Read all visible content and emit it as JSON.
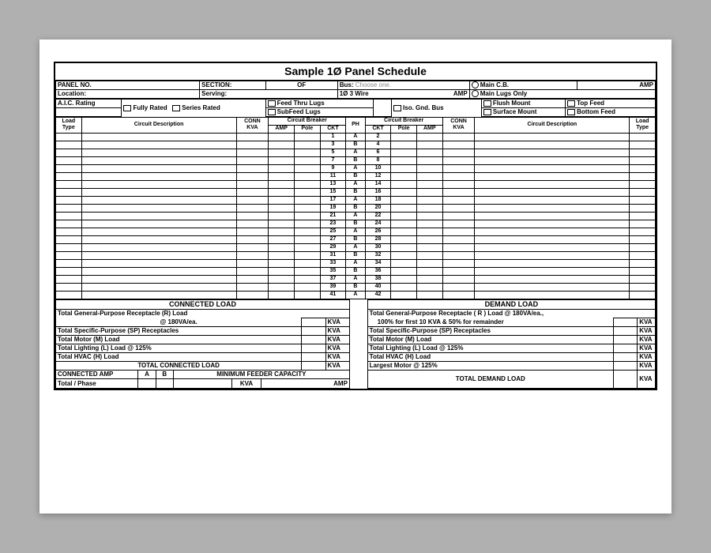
{
  "title": "Sample 1Ø Panel Schedule",
  "header": {
    "panel_no": "PANEL NO.",
    "section": "SECTION:",
    "of": "OF",
    "bus": "Bus:",
    "bus_value": "Choose one.",
    "main_cb": "Main C.B.",
    "amp": "AMP",
    "location": "Location:",
    "serving": "Serving:",
    "wire": "1Ø 3 Wire",
    "main_lugs": "Main Lugs Only",
    "aic": "A.I.C. Rating",
    "fully_rated": "Fully Rated",
    "series_rated": "Series Rated",
    "feed_thru": "Feed Thru Lugs",
    "subfeed": "SubFeed Lugs",
    "iso_gnd": "Iso. Gnd. Bus",
    "flush": "Flush Mount",
    "surface": "Surface Mount",
    "top_feed": "Top Feed",
    "bottom_feed": "Bottom Feed"
  },
  "cols": {
    "load_type": "Load Type",
    "circuit_desc": "Circuit Description",
    "conn_kva": "CONN KVA",
    "cb": "Circuit Breaker",
    "amp": "AMP",
    "pole": "Pole",
    "ckt": "CKT",
    "ph": "PH"
  },
  "circuits": [
    {
      "l": 1,
      "p": "A",
      "r": 2
    },
    {
      "l": 3,
      "p": "B",
      "r": 4
    },
    {
      "l": 5,
      "p": "A",
      "r": 6
    },
    {
      "l": 7,
      "p": "B",
      "r": 8
    },
    {
      "l": 9,
      "p": "A",
      "r": 10
    },
    {
      "l": 11,
      "p": "B",
      "r": 12
    },
    {
      "l": 13,
      "p": "A",
      "r": 14
    },
    {
      "l": 15,
      "p": "B",
      "r": 16
    },
    {
      "l": 17,
      "p": "A",
      "r": 18
    },
    {
      "l": 19,
      "p": "B",
      "r": 20
    },
    {
      "l": 21,
      "p": "A",
      "r": 22
    },
    {
      "l": 23,
      "p": "B",
      "r": 24
    },
    {
      "l": 25,
      "p": "A",
      "r": 26
    },
    {
      "l": 27,
      "p": "B",
      "r": 28
    },
    {
      "l": 29,
      "p": "A",
      "r": 30
    },
    {
      "l": 31,
      "p": "B",
      "r": 32
    },
    {
      "l": 33,
      "p": "A",
      "r": 34
    },
    {
      "l": 35,
      "p": "B",
      "r": 36
    },
    {
      "l": 37,
      "p": "A",
      "r": 38
    },
    {
      "l": 39,
      "p": "B",
      "r": 40
    },
    {
      "l": 41,
      "p": "A",
      "r": 42
    }
  ],
  "connected": {
    "title": "CONNECTED LOAD",
    "r1": "Total General-Purpose Receptacle (R) Load",
    "r1b": "@ 180VA/ea.",
    "r2": "Total Specific-Purpose (SP) Receptacles",
    "r3": "Total Motor (M) Load",
    "r4": "Total Lighting (L) Load @ 125%",
    "r5": "Total HVAC (H) Load",
    "total": "TOTAL CONNECTED LOAD",
    "kva": "KVA"
  },
  "demand": {
    "title": "DEMAND LOAD",
    "r1": "Total General-Purpose Receptacle ( R ) Load @ 180VA/ea.,",
    "r1b": "100% for first 10 KVA & 50% for remainder",
    "r2": "Total Specific-Purpose (SP) Receptacles",
    "r3": "Total Motor (M) Load",
    "r4": "Total Lighting (L) Load @ 125%",
    "r5": "Total HVAC (H) Load",
    "r6": "Largest Motor @ 125%",
    "total": "TOTAL DEMAND LOAD",
    "kva": "KVA"
  },
  "footer": {
    "conn_amp": "CONNECTED AMP",
    "a": "A",
    "b": "B",
    "min_feeder": "MINIMUM FEEDER CAPACITY",
    "total_phase": "Total / Phase",
    "kva": "KVA",
    "amp": "AMP"
  },
  "colors": {
    "bg": "#b0b0b0",
    "paper": "#ffffff",
    "line": "#000000",
    "placeholder": "#888888"
  }
}
